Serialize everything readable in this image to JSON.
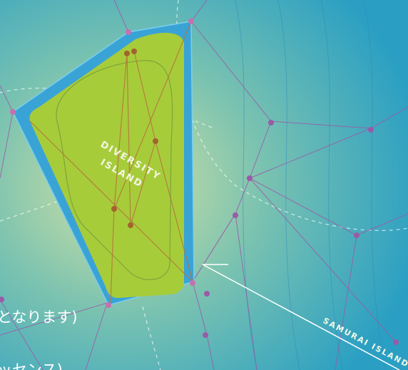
{
  "labels": {
    "island": [
      "DIVERSITY",
      "ISLAND"
    ],
    "other_island": "SAMURAI ISLAND"
  },
  "captions": [
    "となります)",
    "ッセンス)"
  ]
}
